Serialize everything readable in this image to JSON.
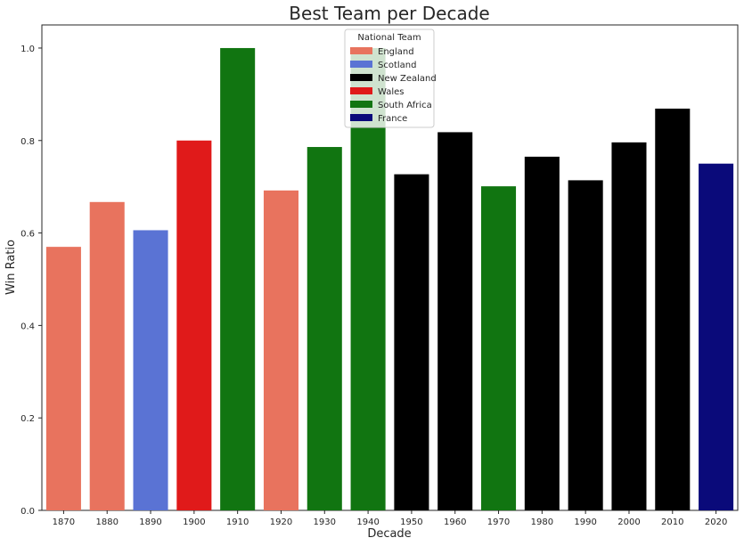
{
  "chart_data": {
    "type": "bar",
    "title": "Best Team per Decade",
    "xlabel": "Decade",
    "ylabel": "Win Ratio",
    "ylim": [
      0,
      1.05
    ],
    "yticks": [
      "0.0",
      "0.2",
      "0.4",
      "0.6",
      "0.8",
      "1.0"
    ],
    "grid": false,
    "legend": {
      "title": "National Team",
      "placement": "top-center",
      "entries": [
        {
          "name": "England",
          "color": "#e8735e"
        },
        {
          "name": "Scotland",
          "color": "#5a73d4"
        },
        {
          "name": "New Zealand",
          "color": "#000000"
        },
        {
          "name": "Wales",
          "color": "#e01a1a"
        },
        {
          "name": "South Africa",
          "color": "#117511"
        },
        {
          "name": "France",
          "color": "#0a0a7a"
        }
      ]
    },
    "categories": [
      "1870",
      "1880",
      "1890",
      "1900",
      "1910",
      "1920",
      "1930",
      "1940",
      "1950",
      "1960",
      "1970",
      "1980",
      "1990",
      "2000",
      "2010",
      "2020"
    ],
    "values": [
      0.57,
      0.667,
      0.606,
      0.8,
      1.0,
      0.692,
      0.786,
      1.0,
      0.727,
      0.818,
      0.701,
      0.765,
      0.714,
      0.796,
      0.869,
      0.75
    ],
    "teams": [
      "England",
      "England",
      "Scotland",
      "Wales",
      "South Africa",
      "England",
      "South Africa",
      "South Africa",
      "New Zealand",
      "New Zealand",
      "South Africa",
      "New Zealand",
      "New Zealand",
      "New Zealand",
      "New Zealand",
      "France"
    ]
  }
}
